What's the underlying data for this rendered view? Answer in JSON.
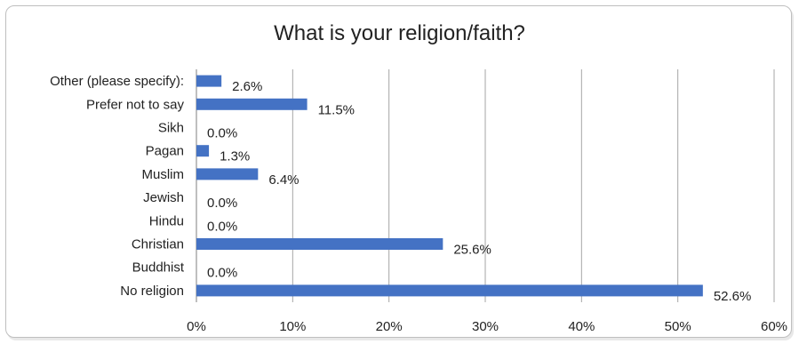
{
  "chart_data": {
    "type": "bar",
    "orientation": "horizontal",
    "title": "What is your religion/faith?",
    "categories": [
      "Other (please specify):",
      "Prefer not to say",
      "Sikh",
      "Pagan",
      "Muslim",
      "Jewish",
      "Hindu",
      "Christian",
      "Buddhist",
      "No religion"
    ],
    "values": [
      2.6,
      11.5,
      0.0,
      1.3,
      6.4,
      0.0,
      0.0,
      25.6,
      0.0,
      52.6
    ],
    "data_labels": [
      "2.6%",
      "11.5%",
      "0.0%",
      "1.3%",
      "6.4%",
      "0.0%",
      "0.0%",
      "25.6%",
      "0.0%",
      "52.6%"
    ],
    "xlim": [
      0,
      60
    ],
    "xticks": [
      "0%",
      "10%",
      "20%",
      "30%",
      "40%",
      "50%",
      "60%"
    ],
    "xlabel": "",
    "ylabel": "",
    "grid": "vertical",
    "bar_color": "#4472c4",
    "grid_color": "#a6a6a6"
  }
}
